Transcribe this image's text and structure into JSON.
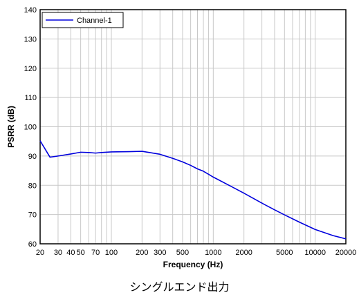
{
  "chart_data": {
    "type": "line",
    "xlabel": "Frequency (Hz)",
    "ylabel": "PSRR (dB)",
    "x_scale": "log",
    "xlim": [
      20,
      20000
    ],
    "ylim": [
      60,
      140
    ],
    "x_ticks": [
      20,
      30,
      40,
      50,
      70,
      100,
      200,
      300,
      500,
      1000,
      2000,
      5000,
      10000,
      20000
    ],
    "y_ticks": [
      60,
      70,
      80,
      90,
      100,
      110,
      120,
      130,
      140
    ],
    "grid": true,
    "legend_position": "top-left",
    "series": [
      {
        "name": "Channel-1",
        "color": "#0000dd",
        "points": [
          [
            20,
            95.2
          ],
          [
            25,
            89.6
          ],
          [
            30,
            90.0
          ],
          [
            40,
            90.7
          ],
          [
            50,
            91.3
          ],
          [
            60,
            91.2
          ],
          [
            70,
            91.0
          ],
          [
            80,
            91.2
          ],
          [
            100,
            91.4
          ],
          [
            150,
            91.5
          ],
          [
            200,
            91.6
          ],
          [
            300,
            90.6
          ],
          [
            400,
            89.2
          ],
          [
            500,
            88.0
          ],
          [
            600,
            86.8
          ],
          [
            700,
            85.6
          ],
          [
            800,
            84.8
          ],
          [
            1000,
            82.8
          ],
          [
            1500,
            79.6
          ],
          [
            2000,
            77.3
          ],
          [
            3000,
            73.9
          ],
          [
            4000,
            71.6
          ],
          [
            5000,
            69.9
          ],
          [
            7000,
            67.4
          ],
          [
            10000,
            64.9
          ],
          [
            15000,
            62.8
          ],
          [
            20000,
            61.7
          ]
        ]
      }
    ]
  },
  "caption": "シングルエンド出力"
}
